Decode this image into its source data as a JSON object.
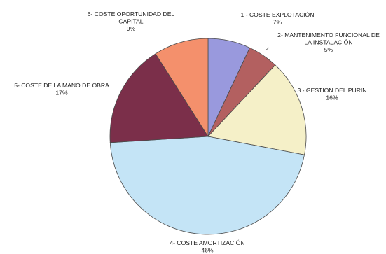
{
  "chart_data": {
    "type": "pie",
    "start_angle_deg": 0,
    "direction": "clockwise",
    "slices": [
      {
        "name": "1 - COSTE EXPLOTACIÓN",
        "label_lines": [
          "1 - COSTE EXPLOTACIÓN"
        ],
        "value": 7,
        "value_label": "7%",
        "color": "#9999dd"
      },
      {
        "name": "2- MANTENIMENTO FUNCIONAL DE LA INSTALACIÓN",
        "label_lines": [
          "2- MANTENIMENTO FUNCIONAL DE",
          "LA INSTALACIÓN"
        ],
        "value": 5,
        "value_label": "5%",
        "color": "#b36060"
      },
      {
        "name": "3 - GESTION DEL PURIN",
        "label_lines": [
          "3 - GESTION DEL PURIN"
        ],
        "value": 16,
        "value_label": "16%",
        "color": "#f5f0c8"
      },
      {
        "name": "4- COSTE AMORTIZACIÓN",
        "label_lines": [
          "4- COSTE AMORTIZACIÓN"
        ],
        "value": 46,
        "value_label": "46%",
        "color": "#c4e4f6"
      },
      {
        "name": "5- COSTE DE LA MANO DE OBRA",
        "label_lines": [
          "5- COSTE DE LA MANO DE OBRA"
        ],
        "value": 17,
        "value_label": "17%",
        "color": "#7b2f4a"
      },
      {
        "name": "6- COSTE OPORTUNIDAD DEL CAPITAL",
        "label_lines": [
          "6- COSTE OPORTUNIDAD DEL",
          "CAPITAL"
        ],
        "value": 9,
        "value_label": "9%",
        "color": "#f4906c"
      }
    ]
  }
}
